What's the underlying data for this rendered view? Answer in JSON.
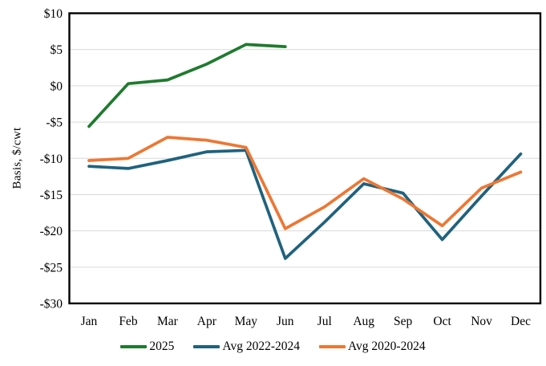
{
  "chart_data": {
    "type": "line",
    "title": "",
    "ylabel": "Basis, $/cwt",
    "xlabel": "",
    "ylim": [
      -30,
      10
    ],
    "ytick_step": 5,
    "ytick_labels": [
      "$10",
      "$5",
      "$0",
      "-$5",
      "-$10",
      "-$15",
      "-$20",
      "-$25",
      "-$30"
    ],
    "categories": [
      "Jan",
      "Feb",
      "Mar",
      "Apr",
      "May",
      "Jun",
      "Jul",
      "Aug",
      "Sep",
      "Oct",
      "Nov",
      "Dec"
    ],
    "series": [
      {
        "name": "2025",
        "color": "#1E7B2E",
        "values": [
          -5.6,
          0.3,
          0.8,
          3.0,
          5.7,
          5.4,
          null,
          null,
          null,
          null,
          null,
          null
        ]
      },
      {
        "name": "Avg 2022-2024",
        "color": "#1F627E",
        "values": [
          -11.1,
          -11.4,
          -10.3,
          -9.1,
          -8.9,
          -23.8,
          -18.8,
          -13.5,
          -14.8,
          -21.2,
          -15.2,
          -9.4
        ]
      },
      {
        "name": "Avg 2020-2024",
        "color": "#ED7733",
        "values": [
          -10.3,
          -10.0,
          -7.1,
          -7.5,
          -8.5,
          -19.7,
          -16.7,
          -12.8,
          -15.6,
          -19.3,
          -14.1,
          -11.9
        ]
      }
    ],
    "legend_position": "bottom",
    "grid": "horizontal",
    "gridline_color": "#D9D9D9",
    "axis_color": "#000000",
    "background_color": "#FFFFFF"
  }
}
